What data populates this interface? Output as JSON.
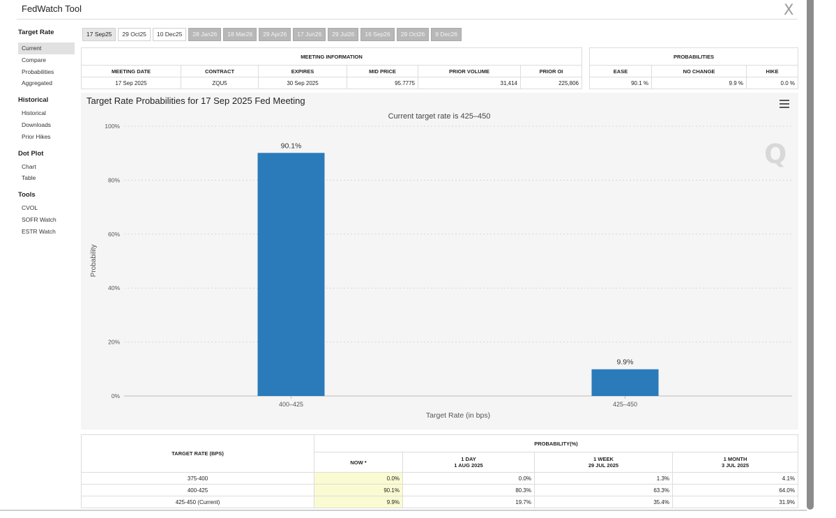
{
  "app": {
    "title": "FedWatch Tool",
    "close_glyph": "X"
  },
  "sidebar": {
    "groups": [
      {
        "heading": "Target Rate",
        "items": [
          "Current",
          "Compare",
          "Probabilities",
          "Aggregated"
        ]
      },
      {
        "heading": "Historical",
        "items": [
          "Historical",
          "Downloads",
          "Prior Hikes"
        ]
      },
      {
        "heading": "Dot Plot",
        "items": [
          "Chart",
          "Table"
        ]
      },
      {
        "heading": "Tools",
        "items": [
          "CVOL",
          "SOFR Watch",
          "ESTR Watch"
        ]
      }
    ],
    "active": "Current"
  },
  "tabs": [
    {
      "label": "17 Sep25",
      "state": "selected"
    },
    {
      "label": "29 Oct25",
      "state": "normal"
    },
    {
      "label": "10 Dec25",
      "state": "normal"
    },
    {
      "label": "28 Jan26",
      "state": "grey"
    },
    {
      "label": "18 Mar26",
      "state": "grey"
    },
    {
      "label": "29 Apr26",
      "state": "grey"
    },
    {
      "label": "17 Jun26",
      "state": "grey"
    },
    {
      "label": "29 Jul26",
      "state": "grey"
    },
    {
      "label": "16 Sep26",
      "state": "grey"
    },
    {
      "label": "28 Oct26",
      "state": "grey"
    },
    {
      "label": "9 Dec26",
      "state": "grey"
    }
  ],
  "meeting_info": {
    "title": "MEETING INFORMATION",
    "headers": [
      "MEETING DATE",
      "CONTRACT",
      "EXPIRES",
      "MID PRICE",
      "PRIOR VOLUME",
      "PRIOR OI"
    ],
    "values": [
      "17 Sep 2025",
      "ZQU5",
      "30 Sep 2025",
      "95.7775",
      "31,414",
      "225,806"
    ]
  },
  "probabilities_box": {
    "title": "PROBABILITIES",
    "headers": [
      "EASE",
      "NO CHANGE",
      "HIKE"
    ],
    "values": [
      "90.1 %",
      "9.9 %",
      "0.0 %"
    ]
  },
  "chart": {
    "title": "Target Rate Probabilities for 17 Sep 2025 Fed Meeting",
    "subtitle": "Current target rate is 425–450",
    "watermark": "Q"
  },
  "chart_data": {
    "type": "bar",
    "title": "Target Rate Probabilities for 17 Sep 2025 Fed Meeting",
    "subtitle": "Current target rate is 425–450",
    "categories": [
      "400–425",
      "425–450"
    ],
    "values": [
      90.1,
      9.9
    ],
    "data_labels": [
      "90.1%",
      "9.9%"
    ],
    "xlabel": "Target Rate (in bps)",
    "ylabel": "Probability",
    "ylim": [
      0,
      100
    ],
    "yticks": [
      "0%",
      "20%",
      "40%",
      "60%",
      "80%",
      "100%"
    ],
    "grid": true,
    "bar_color": "#2b7bba"
  },
  "prob_table": {
    "col0_header": "TARGET RATE (BPS)",
    "group_header": "PROBABILITY(%)",
    "columns": [
      {
        "label": "NOW *",
        "sub": ""
      },
      {
        "label": "1 DAY",
        "sub": "1 AUG 2025"
      },
      {
        "label": "1 WEEK",
        "sub": "29 JUL 2025"
      },
      {
        "label": "1 MONTH",
        "sub": "3 JUL 2025"
      }
    ],
    "rows": [
      {
        "rate": "375-400",
        "cells": [
          "0.0%",
          "0.0%",
          "1.3%",
          "4.1%"
        ]
      },
      {
        "rate": "400-425",
        "cells": [
          "90.1%",
          "80.3%",
          "63.3%",
          "64.0%"
        ]
      },
      {
        "rate": "425-450 (Current)",
        "cells": [
          "9.9%",
          "19.7%",
          "35.4%",
          "31.9%"
        ]
      }
    ]
  }
}
